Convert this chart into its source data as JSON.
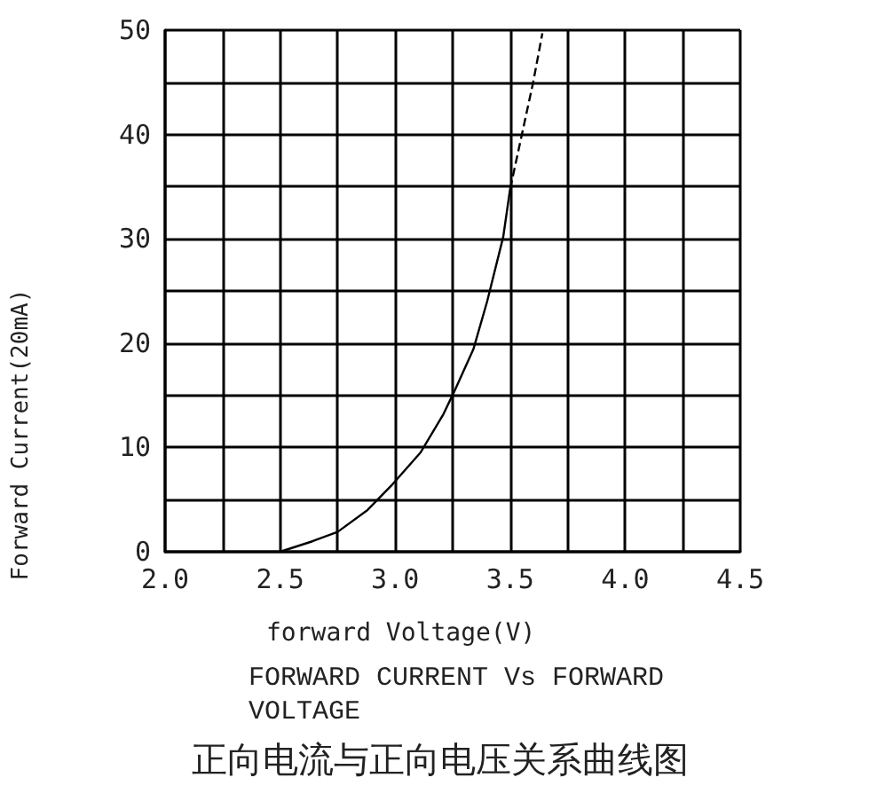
{
  "chart_data": {
    "type": "line",
    "title": "FORWARD CURRENT Vs FORWARD VOLTAGE",
    "subtitle": "正向电流与正向电压关系曲线图",
    "xlabel": "forward Voltage(V)",
    "ylabel": "Forward Current(20mA)",
    "series": [
      {
        "color": "#000000",
        "line_style": "solid",
        "x": [
          2.5,
          2.64,
          2.75,
          2.88,
          2.99,
          3.11,
          3.21,
          3.26,
          3.34,
          3.4,
          3.47,
          3.5
        ],
        "values": [
          0,
          1,
          1.9,
          4,
          6.5,
          9.5,
          13.2,
          15.5,
          19.4,
          24,
          30.2,
          34.8
        ]
      },
      {
        "color": "#000000",
        "line_style": "dashed",
        "x": [
          3.5,
          3.55,
          3.6,
          3.64
        ],
        "values": [
          34.8,
          39.9,
          45,
          49.7
        ]
      }
    ],
    "xlim": [
      2,
      4.5
    ],
    "ylim": [
      0,
      50
    ],
    "xticks": [
      {
        "value": 2,
        "label": "2.0"
      },
      {
        "value": 2.25,
        "label": null
      },
      {
        "value": 2.5,
        "label": "2.5"
      },
      {
        "value": 2.75,
        "label": null
      },
      {
        "value": 3,
        "label": "3.0"
      },
      {
        "value": 3.25,
        "label": null
      },
      {
        "value": 3.5,
        "label": "3.5"
      },
      {
        "value": 3.75,
        "label": null
      },
      {
        "value": 4,
        "label": "4.0"
      },
      {
        "value": 4.25,
        "label": null
      },
      {
        "value": 4.5,
        "label": "4.5"
      }
    ],
    "yticks": [
      0,
      {
        "value": 5,
        "label": null
      },
      10,
      {
        "value": 15,
        "label": null
      },
      20,
      {
        "value": 25,
        "label": null
      },
      30,
      {
        "value": 35,
        "label": null
      },
      40,
      {
        "value": 45,
        "label": null
      },
      50
    ],
    "grid": true,
    "marker": "none"
  }
}
